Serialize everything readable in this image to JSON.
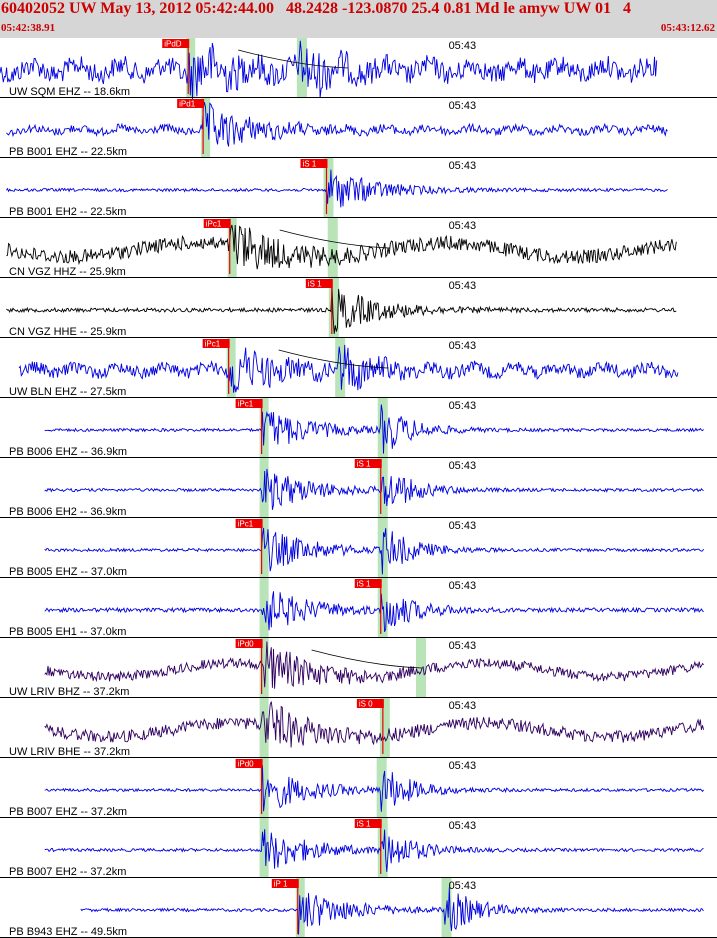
{
  "header": {
    "title": "60402052 UW May 13, 2012 05:42:44.00   48.2428 -123.0870 25.4 0.81 Md le amyw UW 01   4",
    "start_time": "05:42:38.91",
    "end_time": "05:43:12.62"
  },
  "colors": {
    "blue": "#0000e0",
    "black": "#000000",
    "purple": "#300060",
    "pick": "#ee0000",
    "window": "#b8e4b8",
    "header_bg": "#d6d6d6"
  },
  "chart_data": {
    "type": "line",
    "x_unit": "s after 05:42:38.91",
    "xlim": [
      0,
      33.71
    ],
    "time_mark": {
      "label": "05:43",
      "x": 21.09
    },
    "traces": [
      {
        "label": "UW SQM EHZ -- 18.6km",
        "color": "blue",
        "style": "noise",
        "amp": 10,
        "p_x": 8.85,
        "p_label": "iPdD",
        "s_x": 14.1,
        "s_label": "",
        "start": 0.0,
        "end": 30.9,
        "curve": true
      },
      {
        "label": "PB B001 EHZ -- 22.5km",
        "color": "blue",
        "style": "noise",
        "amp": 4,
        "p_x": 9.55,
        "p_label": "iPd1",
        "s_x": null,
        "s_label": "",
        "start": 0.3,
        "end": 31.4,
        "curve": false
      },
      {
        "label": "PB B001 EH2 -- 22.5km",
        "color": "blue",
        "style": "flat",
        "amp": 1.5,
        "p_x": null,
        "p_label": "",
        "s_x": 15.35,
        "s_label": "iS 1",
        "start": 0.3,
        "end": 31.4,
        "curve": false
      },
      {
        "label": "CN VGZ HHZ -- 25.9km",
        "color": "black",
        "style": "swell",
        "amp": 7,
        "p_x": 10.8,
        "p_label": "iPc1",
        "s_x": 15.55,
        "s_label": "",
        "start": 0.3,
        "end": 31.8,
        "curve": true
      },
      {
        "label": "CN VGZ HHE -- 25.9km",
        "color": "black",
        "style": "flat",
        "amp": 2,
        "p_x": null,
        "p_label": "",
        "s_x": 15.6,
        "s_label": "iS 1",
        "start": 0.3,
        "end": 31.8,
        "curve": false
      },
      {
        "label": "UW BLN EHZ -- 27.5km",
        "color": "blue",
        "style": "noise",
        "amp": 6,
        "p_x": 10.75,
        "p_label": "iPc1",
        "s_x": 15.9,
        "s_label": "",
        "start": 0.9,
        "end": 31.9,
        "curve": true
      },
      {
        "label": "PB B006 EHZ -- 36.9km",
        "color": "blue",
        "style": "flat",
        "amp": 1.5,
        "p_x": 12.3,
        "p_label": "iPc1",
        "s_x": 17.9,
        "s_label": "",
        "start": 2.1,
        "end": 33.1,
        "curve": false
      },
      {
        "label": "PB B006 EH2 -- 36.9km",
        "color": "blue",
        "style": "flat",
        "amp": 1.5,
        "p_x": 12.3,
        "p_label": "",
        "s_x": 17.9,
        "s_label": "iS 1",
        "start": 2.1,
        "end": 33.1,
        "curve": false
      },
      {
        "label": "PB B005 EHZ -- 37.0km",
        "color": "blue",
        "style": "flat",
        "amp": 1.5,
        "p_x": 12.3,
        "p_label": "iPc1",
        "s_x": 17.9,
        "s_label": "",
        "start": 2.1,
        "end": 33.1,
        "curve": false
      },
      {
        "label": "PB B005 EH1 -- 37.0km",
        "color": "blue",
        "style": "flat",
        "amp": 2,
        "p_x": 12.3,
        "p_label": "",
        "s_x": 17.9,
        "s_label": "iS 1",
        "start": 2.1,
        "end": 33.1,
        "curve": false
      },
      {
        "label": "UW LRIV BHZ -- 37.2km",
        "color": "purple",
        "style": "swell",
        "amp": 5,
        "p_x": 12.3,
        "p_label": "iPd0",
        "s_x": 19.7,
        "s_label": "",
        "start": 2.1,
        "end": 33.1,
        "curve": true
      },
      {
        "label": "UW LRIV BHE -- 37.2km",
        "color": "purple",
        "style": "swell",
        "amp": 6,
        "p_x": 12.3,
        "p_label": "",
        "s_x": 18.0,
        "s_label": "iS 0",
        "start": 2.1,
        "end": 33.1,
        "curve": false
      },
      {
        "label": "PB B007 EHZ -- 37.2km",
        "color": "blue",
        "style": "flat",
        "amp": 1.5,
        "p_x": 12.3,
        "p_label": "iPd0",
        "s_x": 17.85,
        "s_label": "",
        "start": 2.1,
        "end": 33.1,
        "curve": false
      },
      {
        "label": "PB B007 EH2 -- 37.2km",
        "color": "blue",
        "style": "flat",
        "amp": 1.5,
        "p_x": 12.3,
        "p_label": "",
        "s_x": 17.9,
        "s_label": "iS 1",
        "start": 2.1,
        "end": 33.1,
        "curve": false
      },
      {
        "label": "PB B943 EHZ -- 49.5km",
        "color": "blue",
        "style": "flat",
        "amp": 1.5,
        "p_x": 14.0,
        "p_label": "iP 1",
        "s_x": 20.9,
        "s_label": "",
        "start": 3.8,
        "end": 33.1,
        "curve": false
      }
    ]
  }
}
